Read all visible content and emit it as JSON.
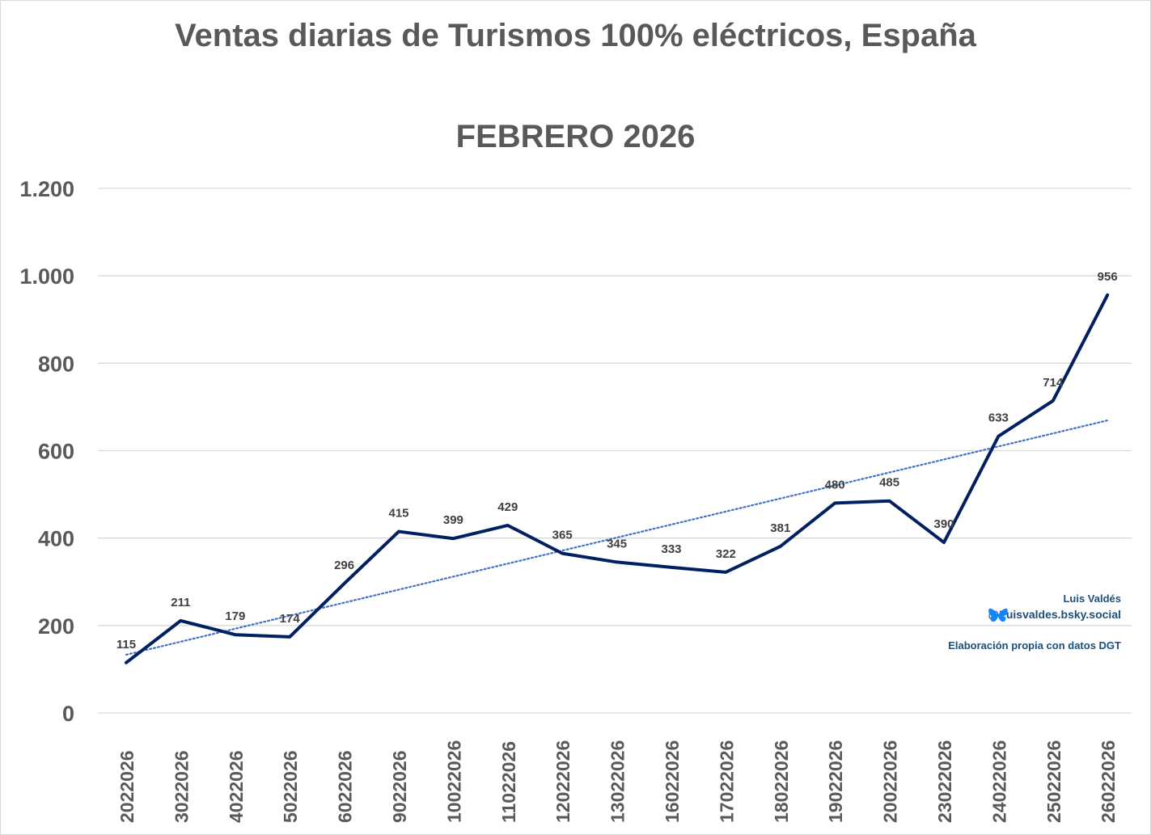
{
  "title": "Ventas diarias de Turismos 100% eléctricos, España",
  "subtitle": "FEBRERO 2026",
  "credits": {
    "author": "Luis Valdés",
    "handle": "@Luisvaldes.bsky.social",
    "source": "Elaboración propia con datos DGT",
    "handle_icon": "butterfly-icon"
  },
  "colors": {
    "line": "#002060",
    "trend": "#4472c4",
    "grid": "#d9d9d9",
    "text": "#595959",
    "label": "#404040",
    "credit": "#1f4e79",
    "bluesky": "#1185fe"
  },
  "chart_data": {
    "type": "line",
    "title": "Ventas diarias de Turismos 100% eléctricos, España",
    "subtitle": "FEBRERO 2026",
    "xlabel": "",
    "ylabel": "",
    "categories": [
      "2022026",
      "3022026",
      "4022026",
      "5022026",
      "6022026",
      "9022026",
      "10022026",
      "11022026",
      "12022026",
      "13022026",
      "16022026",
      "17022026",
      "18022026",
      "19022026",
      "20022026",
      "23022026",
      "24022026",
      "25022026",
      "26022026"
    ],
    "series": [
      {
        "name": "Ventas diarias",
        "values": [
          115,
          211,
          179,
          174,
          296,
          415,
          399,
          429,
          365,
          345,
          333,
          322,
          381,
          480,
          485,
          390,
          633,
          714,
          956
        ]
      }
    ],
    "trendline": {
      "type": "linear",
      "style": "dotted"
    },
    "ylim": [
      0,
      1200
    ],
    "yticks": [
      0,
      200,
      400,
      600,
      800,
      1000,
      1200
    ],
    "ytick_labels": [
      "0",
      "200",
      "400",
      "600",
      "800",
      "1.000",
      "1.200"
    ],
    "grid": true,
    "legend": "none"
  }
}
